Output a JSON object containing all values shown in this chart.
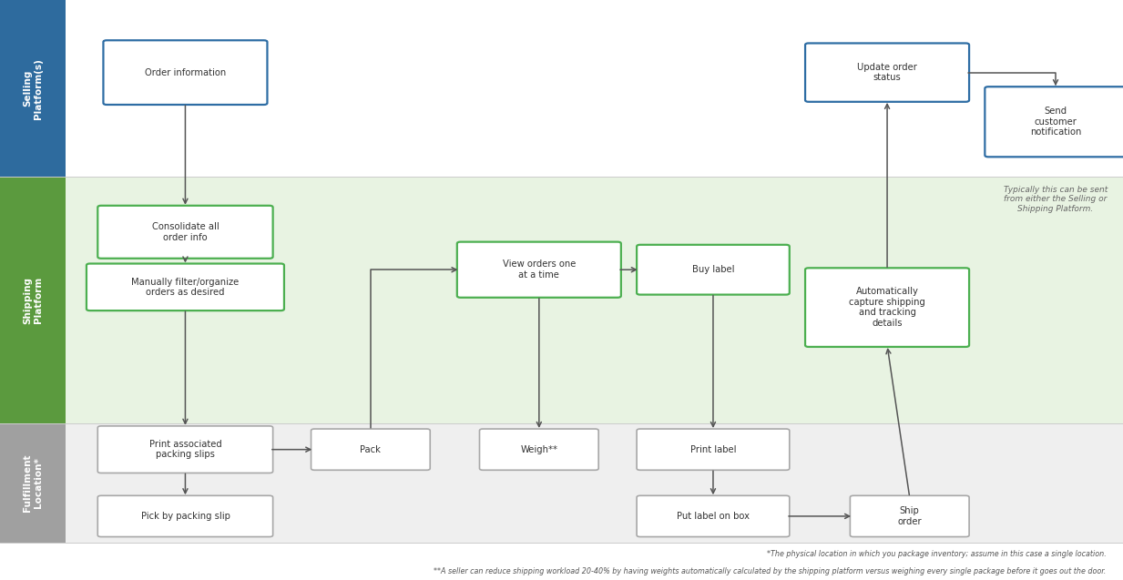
{
  "fig_width": 12.33,
  "fig_height": 6.37,
  "bg_color": "#ffffff",
  "lane_label_colors": {
    "selling": "#2E6B9E",
    "shipping": "#5B9A3E",
    "fulfillment": "#A0A0A0"
  },
  "lane_bg_colors": {
    "selling": "#ffffff",
    "shipping": "#E8F3E2",
    "fulfillment": "#EFEFEF"
  },
  "lane_labels": {
    "selling": "Selling\nPlatform(s)",
    "shipping": "Shipping\nPlatform",
    "fulfillment": "Fulfillment\nLocation*"
  },
  "lane_y_ranges": {
    "selling": [
      0.695,
      1.0
    ],
    "shipping": [
      0.27,
      0.695
    ],
    "fulfillment": [
      0.065,
      0.27
    ]
  },
  "note_text1": "*The physical location in which you package inventory; assume in this case a single location.",
  "note_text2": "**A seller can reduce shipping workload 20-40% by having weights automatically calculated by the shipping platform versus weighing every single package before it goes out the door.",
  "typically_text": "Typically this can be sent\nfrom either the Selling or\nShipping Platform."
}
